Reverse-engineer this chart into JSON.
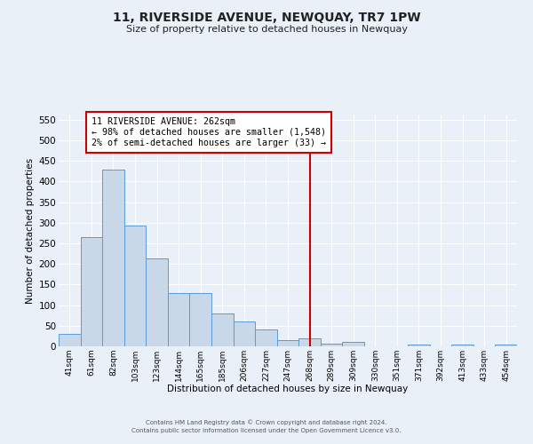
{
  "title": "11, RIVERSIDE AVENUE, NEWQUAY, TR7 1PW",
  "subtitle": "Size of property relative to detached houses in Newquay",
  "xlabel": "Distribution of detached houses by size in Newquay",
  "ylabel": "Number of detached properties",
  "bar_labels": [
    "41sqm",
    "61sqm",
    "82sqm",
    "103sqm",
    "123sqm",
    "144sqm",
    "165sqm",
    "185sqm",
    "206sqm",
    "227sqm",
    "247sqm",
    "268sqm",
    "289sqm",
    "309sqm",
    "330sqm",
    "351sqm",
    "371sqm",
    "392sqm",
    "413sqm",
    "433sqm",
    "454sqm"
  ],
  "bar_heights": [
    30,
    265,
    428,
    293,
    214,
    130,
    130,
    79,
    60,
    40,
    15,
    20,
    6,
    10,
    0,
    0,
    4,
    0,
    5,
    0,
    5
  ],
  "bar_color": "#c8d8e8",
  "bar_edge_color": "#5b9bd5",
  "ylim": [
    0,
    560
  ],
  "yticks": [
    0,
    50,
    100,
    150,
    200,
    250,
    300,
    350,
    400,
    450,
    500,
    550
  ],
  "vline_x_index": 11,
  "vline_color": "#cc0000",
  "annotation_title": "11 RIVERSIDE AVENUE: 262sqm",
  "annotation_line1": "← 98% of detached houses are smaller (1,548)",
  "annotation_line2": "2% of semi-detached houses are larger (33) →",
  "annotation_box_color": "#cc0000",
  "footer_line1": "Contains HM Land Registry data © Crown copyright and database right 2024.",
  "footer_line2": "Contains public sector information licensed under the Open Government Licence v3.0.",
  "background_color": "#eaf0f8",
  "plot_bg_color": "#eaf0f8"
}
